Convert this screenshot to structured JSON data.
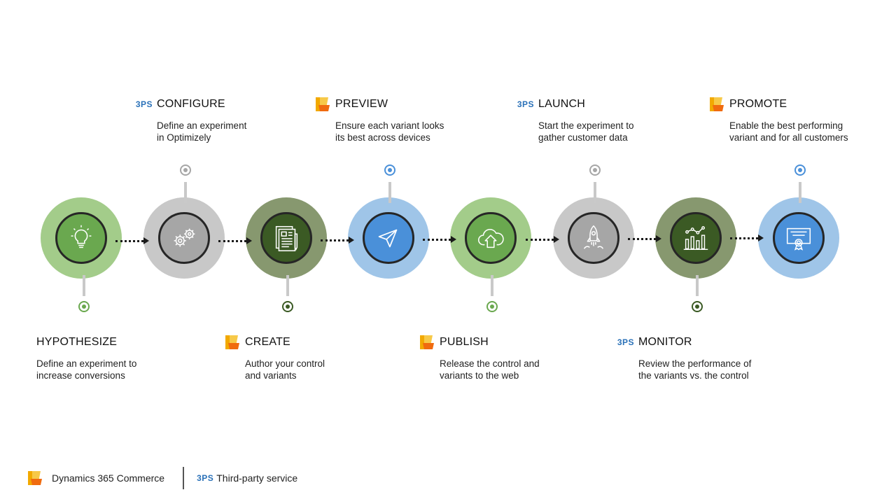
{
  "colors": {
    "green_light": "#a3cc8a",
    "green_inner": "#6aa84f",
    "gray_light": "#c8c8c8",
    "gray_inner": "#a6a6a6",
    "olive": "#87986f",
    "olive_inner": "#3b5a24",
    "blue_light": "#9fc5e8",
    "blue_inner": "#4a90d9",
    "badge_blue": "#2a71b8"
  },
  "steps": [
    {
      "title": "HYPOTHESIZE",
      "desc": "Define an experiment to\nincrease conversions",
      "badge": "",
      "icon": "lightbulb-icon"
    },
    {
      "title": "CONFIGURE",
      "desc": "Define an experiment\nin Optimizely",
      "badge": "3PS",
      "icon": "gears-icon"
    },
    {
      "title": "CREATE",
      "desc": "Author your control\nand variants",
      "badge": "d365",
      "icon": "document-pencil-icon"
    },
    {
      "title": "PREVIEW",
      "desc": "Ensure each variant looks\nits best across devices",
      "badge": "d365",
      "icon": "paper-plane-icon"
    },
    {
      "title": "PUBLISH",
      "desc": "Release the control and\nvariants to the web",
      "badge": "d365",
      "icon": "cloud-upload-icon"
    },
    {
      "title": "LAUNCH",
      "desc": "Start the experiment to\ngather customer data",
      "badge": "3PS",
      "icon": "rocket-icon"
    },
    {
      "title": "MONITOR",
      "desc": "Review the performance of\nthe variants vs. the control",
      "badge": "3PS",
      "icon": "bar-chart-icon"
    },
    {
      "title": "PROMOTE",
      "desc": "Enable the best performing\nvariant and for all customers",
      "badge": "d365",
      "icon": "certificate-icon"
    }
  ],
  "badge_3ps_text": "3PS",
  "legend": {
    "d365_label": "Dynamics 365 Commerce",
    "tps_badge": "3PS",
    "tps_label": "Third-party service"
  }
}
